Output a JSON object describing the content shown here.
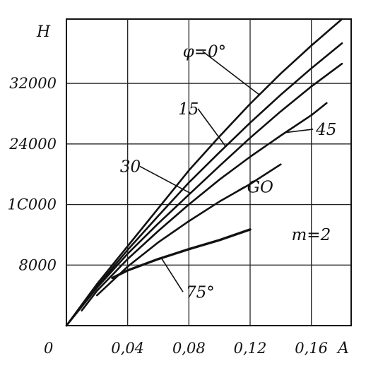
{
  "chart_data": {
    "type": "line",
    "title": "",
    "xlabel": "A",
    "ylabel": "H",
    "origin_label": "0",
    "xlim": [
      0,
      0.186
    ],
    "ylim": [
      0,
      40500
    ],
    "x_ticks": [
      {
        "value": 0.04,
        "label": "0,04"
      },
      {
        "value": 0.08,
        "label": "0,08"
      },
      {
        "value": 0.12,
        "label": "0,12"
      },
      {
        "value": 0.16,
        "label": "0,16"
      }
    ],
    "y_ticks": [
      {
        "value": 8000,
        "label": "8000"
      },
      {
        "value": 16000,
        "label": "1C000"
      },
      {
        "value": 24000,
        "label": "24000"
      },
      {
        "value": 32000,
        "label": "32000"
      }
    ],
    "grid": true,
    "series": [
      {
        "name": "φ=0°",
        "x": [
          0,
          0.02,
          0.04,
          0.06,
          0.08,
          0.1,
          0.12,
          0.14,
          0.16,
          0.18
        ],
        "y": [
          0,
          5500,
          10500,
          15500,
          20500,
          25000,
          29300,
          33300,
          37000,
          40500
        ]
      },
      {
        "name": "15",
        "x": [
          0,
          0.02,
          0.04,
          0.06,
          0.08,
          0.1,
          0.12,
          0.14,
          0.16,
          0.18
        ],
        "y": [
          0,
          5200,
          10000,
          14500,
          18900,
          22900,
          26800,
          30500,
          34000,
          37300
        ]
      },
      {
        "name": "30",
        "x": [
          0,
          0.02,
          0.04,
          0.06,
          0.08,
          0.1,
          0.12,
          0.14,
          0.16,
          0.18
        ],
        "y": [
          0,
          5000,
          9500,
          13500,
          17300,
          21100,
          24800,
          28300,
          31600,
          34600
        ]
      },
      {
        "name": "45",
        "x": [
          0.01,
          0.02,
          0.04,
          0.06,
          0.08,
          0.1,
          0.12,
          0.14,
          0.16,
          0.17
        ],
        "y": [
          2000,
          4600,
          8800,
          12500,
          16000,
          19300,
          22300,
          25100,
          27800,
          29400
        ]
      },
      {
        "name": "60",
        "x": [
          0.02,
          0.04,
          0.06,
          0.08,
          0.1,
          0.12,
          0.14
        ],
        "y": [
          4000,
          7800,
          11000,
          13800,
          16400,
          18700,
          21300
        ]
      },
      {
        "name": "75°",
        "x": [
          0.03,
          0.04,
          0.06,
          0.08,
          0.1,
          0.12
        ],
        "y": [
          6300,
          7300,
          8800,
          10100,
          11300,
          12700
        ]
      }
    ],
    "annotations": [
      {
        "text": "φ=0°",
        "series": "φ=0°",
        "at_x": 0.126,
        "label_x": 0.076,
        "label_y": 35500
      },
      {
        "text": "15",
        "series": "15",
        "at_x": 0.104,
        "label_x": 0.073,
        "label_y": 27900
      },
      {
        "text": "30",
        "series": "30",
        "at_x": 0.081,
        "label_x": 0.035,
        "label_y": 20300
      },
      {
        "text": "45",
        "series": "45",
        "at_x": 0.143,
        "label_x": 0.163,
        "label_y": 25200
      },
      {
        "text": "GO",
        "series": "60",
        "at_x": 0.105,
        "label_x": 0.118,
        "label_y": 17600
      },
      {
        "text": "75°",
        "series": "75°",
        "at_x": 0.062,
        "label_x": 0.078,
        "label_y": 3700
      },
      {
        "text": "m=2",
        "series": "",
        "at_x": null,
        "label_x": 0.147,
        "label_y": 11300
      }
    ]
  }
}
